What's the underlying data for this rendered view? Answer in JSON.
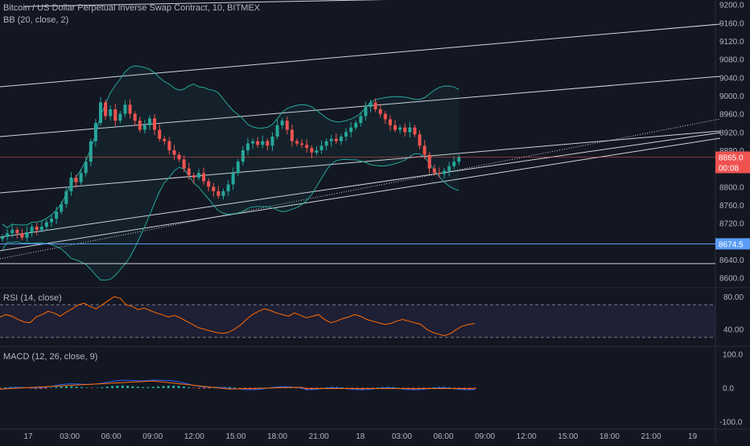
{
  "header": {
    "symbol_line": "Bitcoin / US Dollar Perpetual Inverse Swap Contract, 10, BITMEX",
    "bb_legend": "BB (20, close, 2)"
  },
  "rsi_panel": {
    "legend": "RSI (14, close)"
  },
  "macd_panel": {
    "legend": "MACD (12, 26, close, 9)"
  },
  "price_axis": {
    "ticks": [
      "9200.0",
      "9160.0",
      "9120.0",
      "9080.0",
      "9040.0",
      "9000.0",
      "8960.0",
      "8920.0",
      "8880.0",
      "8800.0",
      "8760.0",
      "8720.0",
      "8640.0",
      "8600.0"
    ]
  },
  "rsi_axis": {
    "ticks": [
      "80.00",
      "40.00"
    ]
  },
  "macd_axis": {
    "ticks": [
      "100.0",
      "0.0",
      "-100.0"
    ]
  },
  "badges": {
    "last_price": "8865.0",
    "countdown": "00:08",
    "horizontal_level": "8674.5"
  },
  "time_axis": {
    "labels": [
      "17",
      "03:00",
      "06:00",
      "09:00",
      "12:00",
      "15:00",
      "18:00",
      "21:00",
      "18",
      "03:00",
      "06:00",
      "09:00",
      "12:00",
      "15:00",
      "18:00",
      "21:00",
      "19"
    ]
  },
  "colors": {
    "background": "#131722",
    "up_candle": "#26a69a",
    "down_candle": "#ef5350",
    "last_price_line": "#ef5350",
    "level_line": "#5b9cf6",
    "rsi_line": "#ff6d00",
    "rsi_band": "#7e57c2",
    "macd_line": "#2962ff",
    "signal_line": "#ff6d00",
    "bb_band": "#26a69a"
  },
  "chart_data": {
    "type": "candlestick",
    "timeframe": "10",
    "price_range": [
      8580,
      9210
    ],
    "last_price": 8865.0,
    "horizontal_level": 8674.5,
    "rsi_bounds": [
      30,
      70
    ],
    "rsi_range": [
      20,
      90
    ],
    "macd_range": [
      -120,
      120
    ],
    "close_series": [
      8690,
      8698,
      8705,
      8698,
      8688,
      8700,
      8712,
      8705,
      8712,
      8722,
      8730,
      8745,
      8762,
      8790,
      8820,
      8810,
      8830,
      8855,
      8900,
      8940,
      8985,
      8955,
      8970,
      8945,
      8960,
      8980,
      8960,
      8945,
      8925,
      8935,
      8950,
      8925,
      8905,
      8900,
      8880,
      8870,
      8860,
      8840,
      8825,
      8820,
      8830,
      8812,
      8800,
      8790,
      8780,
      8790,
      8805,
      8830,
      8855,
      8880,
      8895,
      8900,
      8892,
      8900,
      8890,
      8910,
      8935,
      8945,
      8925,
      8900,
      8895,
      8892,
      8885,
      8875,
      8880,
      8890,
      8900,
      8905,
      8900,
      8910,
      8920,
      8930,
      8940,
      8955,
      8975,
      8985,
      8970,
      8960,
      8948,
      8935,
      8925,
      8930,
      8920,
      8930,
      8915,
      8890,
      8870,
      8840,
      8830,
      8828,
      8835,
      8845,
      8855,
      8865
    ],
    "rsi_series": [
      55,
      58,
      56,
      52,
      49,
      48,
      55,
      58,
      62,
      60,
      56,
      61,
      65,
      70,
      72,
      68,
      65,
      70,
      75,
      80,
      78,
      70,
      68,
      64,
      66,
      63,
      60,
      58,
      55,
      57,
      54,
      50,
      46,
      42,
      40,
      38,
      36,
      35,
      36,
      40,
      45,
      52,
      58,
      62,
      65,
      63,
      60,
      58,
      56,
      60,
      57,
      54,
      56,
      58,
      52,
      48,
      50,
      53,
      55,
      58,
      56,
      52,
      50,
      48,
      46,
      47,
      50,
      52,
      50,
      48,
      46,
      40,
      36,
      34,
      32,
      35,
      40,
      44,
      46,
      47
    ]
  }
}
